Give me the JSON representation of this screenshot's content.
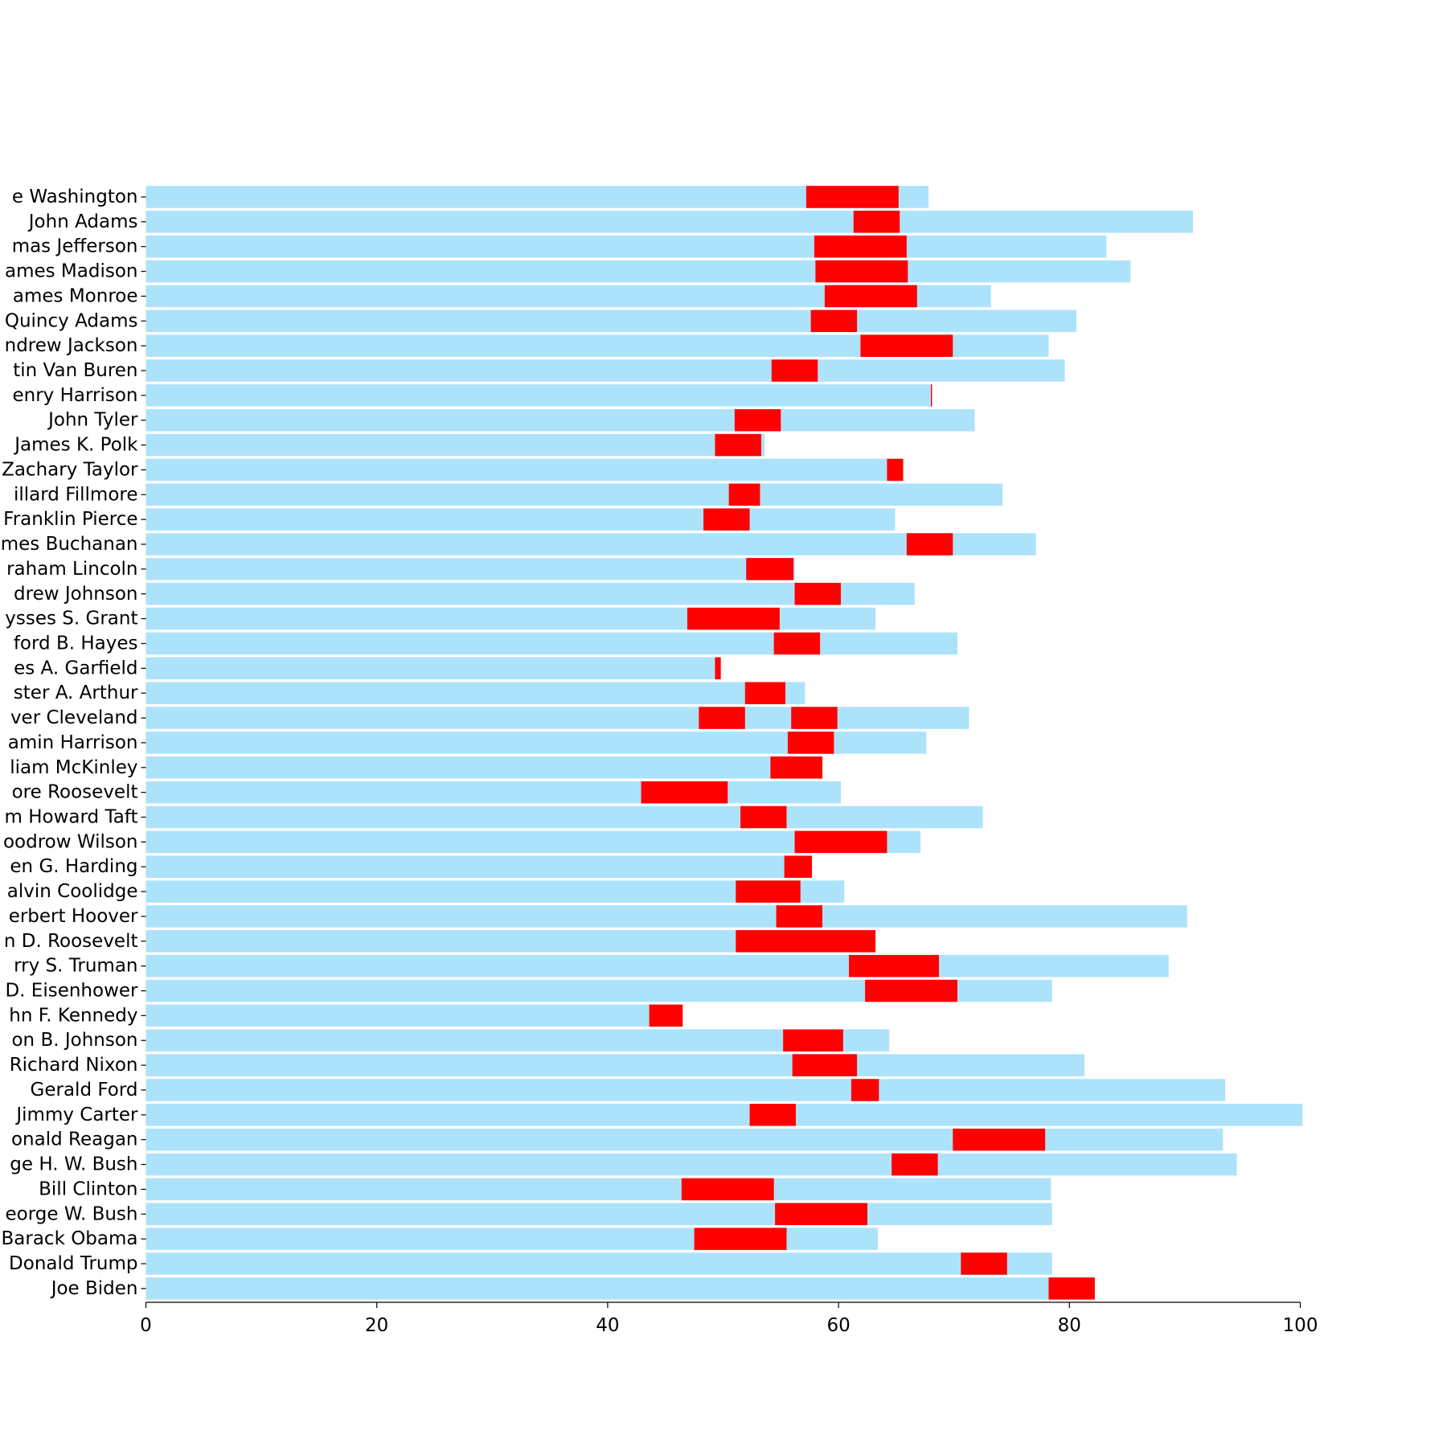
{
  "chart_data": {
    "type": "bar",
    "orientation": "horizontal",
    "title": "",
    "xlabel": "",
    "ylabel": "",
    "xlim": [
      0,
      100
    ],
    "xticks": [
      "0",
      "20",
      "40",
      "60",
      "80",
      "100"
    ],
    "grid": false,
    "legend": "none",
    "colors": {
      "lifespan": "#ade2fb",
      "presidency": "#ff0000"
    },
    "presidents": [
      {
        "label": "e Washington",
        "lifespan": 67.8,
        "terms": [
          [
            57.2,
            65.2
          ]
        ]
      },
      {
        "label": "John Adams",
        "lifespan": 90.7,
        "terms": [
          [
            61.3,
            65.3
          ]
        ]
      },
      {
        "label": "mas Jefferson",
        "lifespan": 83.2,
        "terms": [
          [
            57.9,
            65.9
          ]
        ]
      },
      {
        "label": "ames Madison",
        "lifespan": 85.3,
        "terms": [
          [
            58.0,
            66.0
          ]
        ]
      },
      {
        "label": "ames Monroe",
        "lifespan": 73.2,
        "terms": [
          [
            58.8,
            66.8
          ]
        ]
      },
      {
        "label": "Quincy Adams",
        "lifespan": 80.6,
        "terms": [
          [
            57.6,
            61.6
          ]
        ]
      },
      {
        "label": "ndrew Jackson",
        "lifespan": 78.2,
        "terms": [
          [
            61.9,
            69.9
          ]
        ]
      },
      {
        "label": "tin Van Buren",
        "lifespan": 79.6,
        "terms": [
          [
            54.2,
            58.2
          ]
        ]
      },
      {
        "label": "enry Harrison",
        "lifespan": 68.1,
        "terms": [
          [
            68.0,
            68.1
          ]
        ]
      },
      {
        "label": "John Tyler",
        "lifespan": 71.8,
        "terms": [
          [
            51.0,
            55.0
          ]
        ]
      },
      {
        "label": "James K. Polk",
        "lifespan": 53.6,
        "terms": [
          [
            49.3,
            53.3
          ]
        ]
      },
      {
        "label": "Zachary Taylor",
        "lifespan": 65.6,
        "terms": [
          [
            64.2,
            65.6
          ]
        ]
      },
      {
        "label": "illard Fillmore",
        "lifespan": 74.2,
        "terms": [
          [
            50.5,
            53.2
          ]
        ]
      },
      {
        "label": "Franklin Pierce",
        "lifespan": 64.9,
        "terms": [
          [
            48.3,
            52.3
          ]
        ]
      },
      {
        "label": "mes Buchanan",
        "lifespan": 77.1,
        "terms": [
          [
            65.9,
            69.9
          ]
        ]
      },
      {
        "label": "raham Lincoln",
        "lifespan": 56.2,
        "terms": [
          [
            52.0,
            56.1
          ]
        ]
      },
      {
        "label": "drew Johnson",
        "lifespan": 66.6,
        "terms": [
          [
            56.2,
            60.2
          ]
        ]
      },
      {
        "label": "ysses S. Grant",
        "lifespan": 63.2,
        "terms": [
          [
            46.9,
            54.9
          ]
        ]
      },
      {
        "label": "ford B. Hayes",
        "lifespan": 70.3,
        "terms": [
          [
            54.4,
            58.4
          ]
        ]
      },
      {
        "label": "es A. Garfield",
        "lifespan": 49.8,
        "terms": [
          [
            49.3,
            49.8
          ]
        ]
      },
      {
        "label": "ster A. Arthur",
        "lifespan": 57.1,
        "terms": [
          [
            51.9,
            55.4
          ]
        ]
      },
      {
        "label": "ver Cleveland",
        "lifespan": 71.3,
        "terms": [
          [
            47.9,
            51.9
          ],
          [
            55.9,
            59.9
          ]
        ]
      },
      {
        "label": "amin Harrison",
        "lifespan": 67.6,
        "terms": [
          [
            55.6,
            59.6
          ]
        ]
      },
      {
        "label": "liam McKinley",
        "lifespan": 58.6,
        "terms": [
          [
            54.1,
            58.6
          ]
        ]
      },
      {
        "label": "ore Roosevelt",
        "lifespan": 60.2,
        "terms": [
          [
            42.9,
            50.4
          ]
        ]
      },
      {
        "label": "m Howard Taft",
        "lifespan": 72.5,
        "terms": [
          [
            51.5,
            55.5
          ]
        ]
      },
      {
        "label": "oodrow Wilson",
        "lifespan": 67.1,
        "terms": [
          [
            56.2,
            64.2
          ]
        ]
      },
      {
        "label": "en G. Harding",
        "lifespan": 57.7,
        "terms": [
          [
            55.3,
            57.7
          ]
        ]
      },
      {
        "label": "alvin Coolidge",
        "lifespan": 60.5,
        "terms": [
          [
            51.1,
            56.7
          ]
        ]
      },
      {
        "label": "erbert Hoover",
        "lifespan": 90.2,
        "terms": [
          [
            54.6,
            58.6
          ]
        ]
      },
      {
        "label": "n D. Roosevelt",
        "lifespan": 63.2,
        "terms": [
          [
            51.1,
            63.2
          ]
        ]
      },
      {
        "label": "rry S. Truman",
        "lifespan": 88.6,
        "terms": [
          [
            60.9,
            68.7
          ]
        ]
      },
      {
        "label": "D. Eisenhower",
        "lifespan": 78.5,
        "terms": [
          [
            62.3,
            70.3
          ]
        ]
      },
      {
        "label": "hn F. Kennedy",
        "lifespan": 46.5,
        "terms": [
          [
            43.6,
            46.5
          ]
        ]
      },
      {
        "label": "on B. Johnson",
        "lifespan": 64.4,
        "terms": [
          [
            55.2,
            60.4
          ]
        ]
      },
      {
        "label": "Richard Nixon",
        "lifespan": 81.3,
        "terms": [
          [
            56.0,
            61.6
          ]
        ]
      },
      {
        "label": "Gerald Ford",
        "lifespan": 93.5,
        "terms": [
          [
            61.1,
            63.5
          ]
        ]
      },
      {
        "label": "Jimmy Carter",
        "lifespan": 100.2,
        "terms": [
          [
            52.3,
            56.3
          ]
        ]
      },
      {
        "label": "onald Reagan",
        "lifespan": 93.3,
        "terms": [
          [
            69.9,
            77.9
          ]
        ]
      },
      {
        "label": "ge H. W. Bush",
        "lifespan": 94.5,
        "terms": [
          [
            64.6,
            68.6
          ]
        ]
      },
      {
        "label": "Bill Clinton",
        "lifespan": 78.4,
        "terms": [
          [
            46.4,
            54.4
          ]
        ]
      },
      {
        "label": "eorge W. Bush",
        "lifespan": 78.5,
        "terms": [
          [
            54.5,
            62.5
          ]
        ]
      },
      {
        "label": "Barack Obama",
        "lifespan": 63.4,
        "terms": [
          [
            47.5,
            55.5
          ]
        ]
      },
      {
        "label": "Donald Trump",
        "lifespan": 78.5,
        "terms": [
          [
            70.6,
            74.6
          ]
        ]
      },
      {
        "label": "Joe Biden",
        "lifespan": 78.2,
        "terms": [
          [
            78.2,
            82.2
          ]
        ]
      }
    ]
  }
}
